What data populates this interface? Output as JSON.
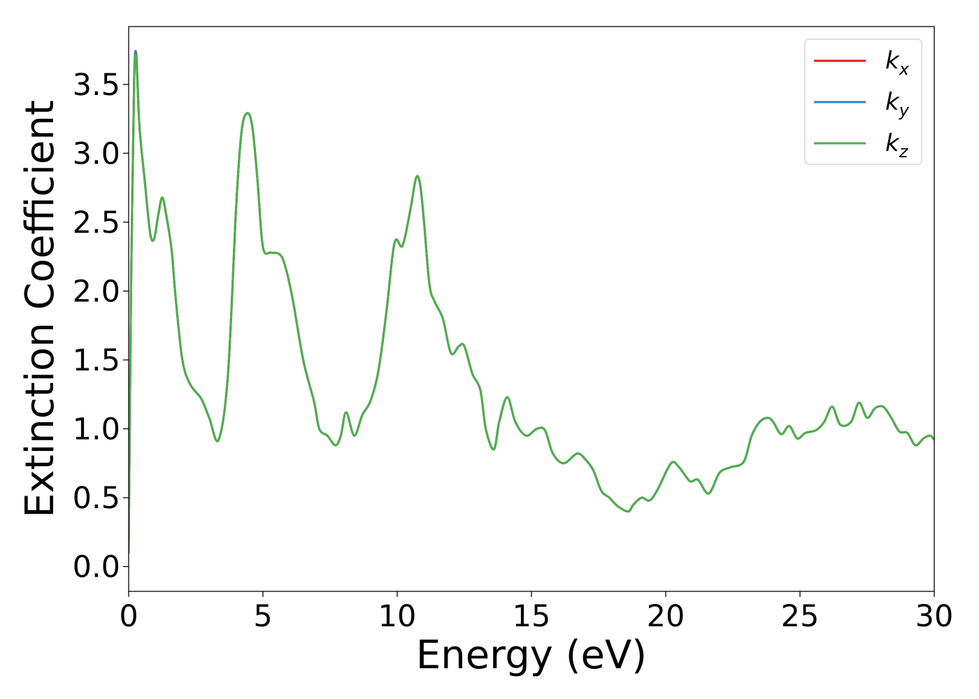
{
  "chart_data": {
    "type": "line",
    "title": "",
    "xlabel": "Energy (eV)",
    "ylabel": "Extinction Coefficient",
    "xlim": [
      0,
      30
    ],
    "ylim": [
      -0.18,
      3.92
    ],
    "xticks": [
      "0",
      "5",
      "10",
      "15",
      "20",
      "25",
      "30"
    ],
    "yticks": [
      "0.0",
      "0.5",
      "1.0",
      "1.5",
      "2.0",
      "2.5",
      "3.0",
      "3.5"
    ],
    "grid": false,
    "legend_position": "top-right",
    "series": [
      {
        "name": "k_x",
        "legend_base": "k",
        "legend_sub": "x",
        "color": "#e41a1c",
        "x": [
          0,
          0.1,
          0.2,
          0.28,
          0.4,
          0.6,
          0.8,
          0.95,
          1.1,
          1.25,
          1.4,
          1.6,
          1.75,
          2.0,
          2.3,
          2.7,
          3.0,
          3.35,
          3.7,
          4.0,
          4.2,
          4.4,
          4.6,
          4.8,
          5.0,
          5.3,
          5.6,
          5.8,
          6.1,
          6.5,
          6.9,
          7.1,
          7.4,
          7.7,
          7.9,
          8.1,
          8.4,
          8.7,
          9.0,
          9.3,
          9.6,
          9.9,
          10.2,
          10.5,
          10.7,
          10.85,
          11.0,
          11.2,
          11.4,
          11.7,
          12.0,
          12.3,
          12.5,
          12.8,
          13.1,
          13.3,
          13.6,
          13.8,
          14.1,
          14.4,
          14.8,
          15.2,
          15.5,
          15.8,
          16.2,
          16.7,
          17.0,
          17.3,
          17.6,
          17.9,
          18.2,
          18.6,
          18.8,
          19.1,
          19.4,
          19.7,
          20.2,
          20.5,
          20.9,
          21.2,
          21.6,
          22.0,
          22.4,
          22.9,
          23.2,
          23.5,
          23.8,
          24.0,
          24.3,
          24.6,
          24.9,
          25.2,
          25.6,
          25.9,
          26.2,
          26.5,
          26.9,
          27.2,
          27.5,
          27.8,
          28.1,
          28.4,
          28.7,
          29.0,
          29.3,
          29.6,
          29.85,
          30.0
        ],
        "y": [
          0.1,
          2.2,
          3.5,
          3.72,
          3.2,
          2.8,
          2.42,
          2.38,
          2.55,
          2.68,
          2.55,
          2.3,
          1.95,
          1.5,
          1.32,
          1.22,
          1.08,
          0.92,
          1.4,
          2.6,
          3.15,
          3.29,
          3.2,
          2.8,
          2.32,
          2.28,
          2.27,
          2.2,
          1.95,
          1.5,
          1.2,
          1.0,
          0.95,
          0.88,
          0.95,
          1.12,
          0.95,
          1.1,
          1.2,
          1.42,
          1.85,
          2.35,
          2.33,
          2.6,
          2.82,
          2.78,
          2.5,
          2.05,
          1.92,
          1.8,
          1.55,
          1.6,
          1.6,
          1.4,
          1.28,
          1.0,
          0.85,
          1.05,
          1.23,
          1.05,
          0.95,
          1.0,
          0.99,
          0.82,
          0.75,
          0.82,
          0.78,
          0.7,
          0.55,
          0.5,
          0.44,
          0.4,
          0.45,
          0.5,
          0.48,
          0.56,
          0.75,
          0.72,
          0.62,
          0.63,
          0.53,
          0.68,
          0.72,
          0.76,
          0.95,
          1.05,
          1.08,
          1.05,
          0.96,
          1.02,
          0.93,
          0.97,
          0.99,
          1.05,
          1.16,
          1.03,
          1.05,
          1.19,
          1.08,
          1.15,
          1.16,
          1.08,
          0.98,
          0.97,
          0.88,
          0.93,
          0.95,
          0.92
        ]
      },
      {
        "name": "k_y",
        "legend_base": "k",
        "legend_sub": "y",
        "color": "#377eb8",
        "x": [
          0,
          0.1,
          0.2,
          0.28,
          0.4,
          0.6,
          0.8,
          0.95,
          1.1,
          1.25,
          1.4,
          1.6,
          1.75,
          2.0,
          2.3,
          2.7,
          3.0,
          3.35,
          3.7,
          4.0,
          4.2,
          4.4,
          4.6,
          4.8,
          5.0,
          5.3,
          5.6,
          5.8,
          6.1,
          6.5,
          6.9,
          7.1,
          7.4,
          7.7,
          7.9,
          8.1,
          8.4,
          8.7,
          9.0,
          9.3,
          9.6,
          9.9,
          10.2,
          10.5,
          10.7,
          10.85,
          11.0,
          11.2,
          11.4,
          11.7,
          12.0,
          12.3,
          12.5,
          12.8,
          13.1,
          13.3,
          13.6,
          13.8,
          14.1,
          14.4,
          14.8,
          15.2,
          15.5,
          15.8,
          16.2,
          16.7,
          17.0,
          17.3,
          17.6,
          17.9,
          18.2,
          18.6,
          18.8,
          19.1,
          19.4,
          19.7,
          20.2,
          20.5,
          20.9,
          21.2,
          21.6,
          22.0,
          22.4,
          22.9,
          23.2,
          23.5,
          23.8,
          24.0,
          24.3,
          24.6,
          24.9,
          25.2,
          25.6,
          25.9,
          26.2,
          26.5,
          26.9,
          27.2,
          27.5,
          27.8,
          28.1,
          28.4,
          28.7,
          29.0,
          29.3,
          29.6,
          29.85,
          30.0
        ],
        "y": [
          0.1,
          2.2,
          3.5,
          3.72,
          3.2,
          2.8,
          2.42,
          2.38,
          2.55,
          2.68,
          2.55,
          2.3,
          1.95,
          1.5,
          1.32,
          1.22,
          1.08,
          0.92,
          1.4,
          2.6,
          3.15,
          3.29,
          3.2,
          2.8,
          2.32,
          2.28,
          2.27,
          2.2,
          1.95,
          1.5,
          1.2,
          1.0,
          0.95,
          0.88,
          0.95,
          1.12,
          0.95,
          1.1,
          1.2,
          1.42,
          1.85,
          2.35,
          2.33,
          2.6,
          2.82,
          2.78,
          2.5,
          2.05,
          1.92,
          1.8,
          1.55,
          1.6,
          1.6,
          1.4,
          1.28,
          1.0,
          0.85,
          1.05,
          1.23,
          1.05,
          0.95,
          1.0,
          0.99,
          0.82,
          0.75,
          0.82,
          0.78,
          0.7,
          0.55,
          0.5,
          0.44,
          0.4,
          0.45,
          0.5,
          0.48,
          0.56,
          0.75,
          0.72,
          0.62,
          0.63,
          0.53,
          0.68,
          0.72,
          0.76,
          0.95,
          1.05,
          1.08,
          1.05,
          0.96,
          1.02,
          0.93,
          0.97,
          0.99,
          1.05,
          1.16,
          1.03,
          1.05,
          1.19,
          1.08,
          1.15,
          1.16,
          1.08,
          0.98,
          0.97,
          0.88,
          0.93,
          0.95,
          0.92
        ]
      },
      {
        "name": "k_z",
        "legend_base": "k",
        "legend_sub": "z",
        "color": "#4daf4a",
        "x": [
          0,
          0.1,
          0.2,
          0.28,
          0.4,
          0.6,
          0.8,
          0.95,
          1.1,
          1.25,
          1.4,
          1.6,
          1.75,
          2.0,
          2.3,
          2.7,
          3.0,
          3.35,
          3.7,
          4.0,
          4.2,
          4.4,
          4.6,
          4.8,
          5.0,
          5.3,
          5.6,
          5.8,
          6.1,
          6.5,
          6.9,
          7.1,
          7.4,
          7.7,
          7.9,
          8.1,
          8.4,
          8.7,
          9.0,
          9.3,
          9.6,
          9.9,
          10.2,
          10.5,
          10.7,
          10.85,
          11.0,
          11.2,
          11.4,
          11.7,
          12.0,
          12.3,
          12.5,
          12.8,
          13.1,
          13.3,
          13.6,
          13.8,
          14.1,
          14.4,
          14.8,
          15.2,
          15.5,
          15.8,
          16.2,
          16.7,
          17.0,
          17.3,
          17.6,
          17.9,
          18.2,
          18.6,
          18.8,
          19.1,
          19.4,
          19.7,
          20.2,
          20.5,
          20.9,
          21.2,
          21.6,
          22.0,
          22.4,
          22.9,
          23.2,
          23.5,
          23.8,
          24.0,
          24.3,
          24.6,
          24.9,
          25.2,
          25.6,
          25.9,
          26.2,
          26.5,
          26.9,
          27.2,
          27.5,
          27.8,
          28.1,
          28.4,
          28.7,
          29.0,
          29.3,
          29.6,
          29.85,
          30.0
        ],
        "y": [
          0.1,
          2.2,
          3.48,
          3.69,
          3.2,
          2.8,
          2.42,
          2.38,
          2.55,
          2.68,
          2.55,
          2.3,
          1.95,
          1.5,
          1.32,
          1.22,
          1.08,
          0.92,
          1.4,
          2.6,
          3.15,
          3.29,
          3.2,
          2.8,
          2.32,
          2.28,
          2.27,
          2.2,
          1.95,
          1.5,
          1.2,
          1.0,
          0.95,
          0.88,
          0.95,
          1.12,
          0.95,
          1.1,
          1.2,
          1.42,
          1.85,
          2.35,
          2.33,
          2.6,
          2.82,
          2.78,
          2.5,
          2.05,
          1.92,
          1.8,
          1.55,
          1.6,
          1.6,
          1.4,
          1.28,
          1.0,
          0.85,
          1.05,
          1.23,
          1.05,
          0.95,
          1.0,
          0.99,
          0.82,
          0.75,
          0.82,
          0.78,
          0.7,
          0.55,
          0.5,
          0.44,
          0.4,
          0.45,
          0.5,
          0.48,
          0.56,
          0.75,
          0.72,
          0.62,
          0.63,
          0.53,
          0.68,
          0.72,
          0.76,
          0.95,
          1.05,
          1.08,
          1.05,
          0.96,
          1.02,
          0.93,
          0.97,
          0.99,
          1.05,
          1.16,
          1.03,
          1.05,
          1.19,
          1.08,
          1.15,
          1.16,
          1.08,
          0.98,
          0.97,
          0.88,
          0.93,
          0.95,
          0.92
        ]
      }
    ]
  }
}
